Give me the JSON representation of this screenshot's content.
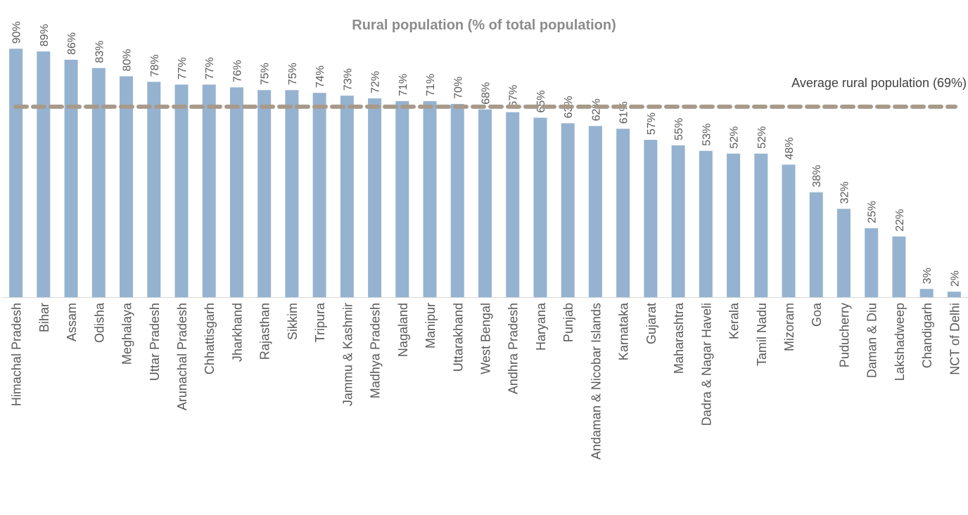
{
  "chart_data": {
    "type": "bar",
    "title": "Rural population (% of total population)",
    "xlabel": "",
    "ylabel": "",
    "ylim": [
      0,
      100
    ],
    "grid": false,
    "categories": [
      "Himachal Pradesh",
      "Bihar",
      "Assam",
      "Odisha",
      "Meghalaya",
      "Uttar Pradesh",
      "Arunachal Pradesh",
      "Chhattisgarh",
      "Jharkhand",
      "Rajasthan",
      "Sikkim",
      "Tripura",
      "Jammu & Kashmir",
      "Madhya Pradesh",
      "Nagaland",
      "Manipur",
      "Uttarakhand",
      "West Bengal",
      "Andhra Pradesh",
      "Haryana",
      "Punjab",
      "Andaman & Nicobar Islands",
      "Karnataka",
      "Gujarat",
      "Maharashtra",
      "Dadra & Nagar Haveli",
      "Kerala",
      "Tamil Nadu",
      "Mizoram",
      "Goa",
      "Puducherry",
      "Daman & Diu",
      "Lakshadweep",
      "Chandigarh",
      "NCT of Delhi"
    ],
    "values": [
      90,
      89,
      86,
      83,
      80,
      78,
      77,
      77,
      76,
      75,
      75,
      74,
      73,
      72,
      71,
      71,
      70,
      68,
      67,
      65,
      63,
      62,
      61,
      57,
      55,
      53,
      52,
      52,
      48,
      38,
      32,
      25,
      22,
      3,
      2
    ],
    "value_labels": [
      "90%",
      "89%",
      "86%",
      "83%",
      "80%",
      "78%",
      "77%",
      "77%",
      "76%",
      "75%",
      "75%",
      "74%",
      "73%",
      "72%",
      "71%",
      "71%",
      "70%",
      "68%",
      "67%",
      "65%",
      "63%",
      "62%",
      "61%",
      "57%",
      "55%",
      "53%",
      "52%",
      "52%",
      "48%",
      "38%",
      "32%",
      "25%",
      "22%",
      "3%",
      "2%"
    ],
    "reference_line": {
      "label": "Average rural population (69%)",
      "value": 69,
      "style": "dashed"
    },
    "colors": {
      "bar": "#95b3d0",
      "reference_line": "#a89a8a",
      "axis": "#d9d9d9"
    }
  }
}
